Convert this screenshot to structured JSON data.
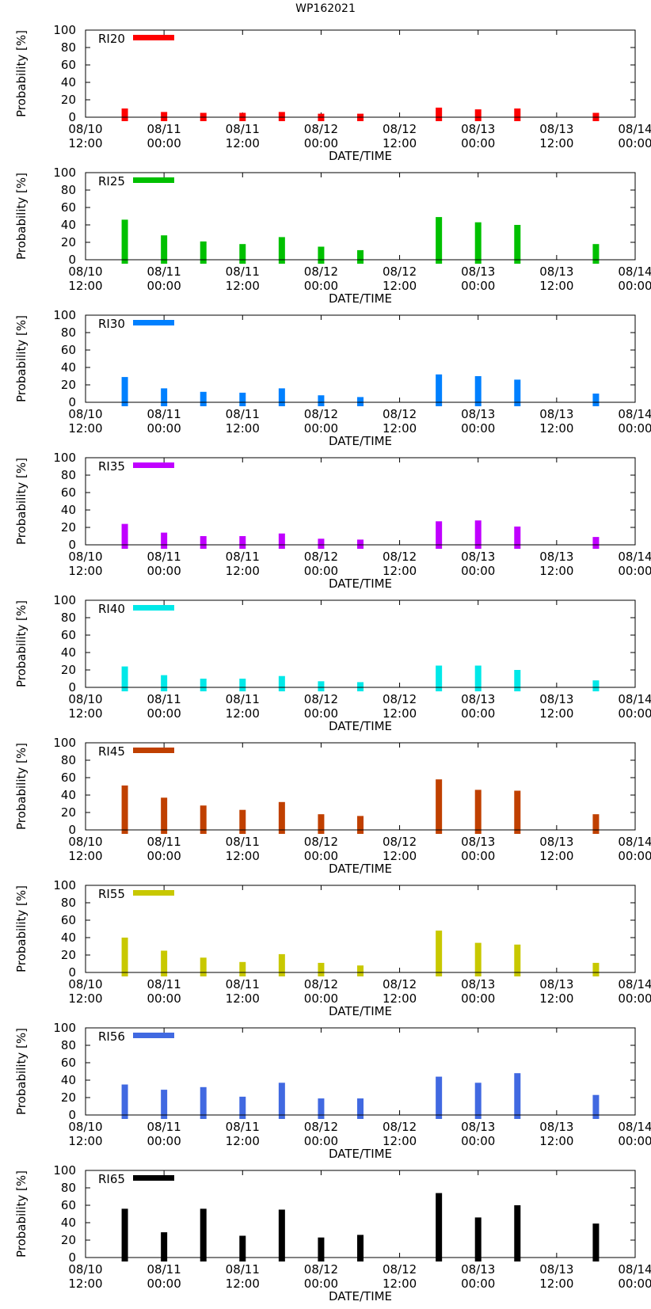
{
  "title": "WP162021",
  "chart_data": [
    {
      "type": "bar",
      "legend": "RI20",
      "color": "#ff0000",
      "xlabel": "DATE/TIME",
      "ylabel": "Probability [%]",
      "ylim": [
        0,
        100
      ],
      "yticks": [
        0,
        20,
        40,
        60,
        80,
        100
      ],
      "x_ticks": [
        {
          "line1": "08/10",
          "line2": "12:00"
        },
        {
          "line1": "08/11",
          "line2": "00:00"
        },
        {
          "line1": "08/11",
          "line2": "12:00"
        },
        {
          "line1": "08/12",
          "line2": "00:00"
        },
        {
          "line1": "08/12",
          "line2": "12:00"
        },
        {
          "line1": "08/13",
          "line2": "00:00"
        },
        {
          "line1": "08/13",
          "line2": "12:00"
        },
        {
          "line1": "08/14",
          "line2": "00:00"
        }
      ],
      "x_hours": [
        6,
        12,
        18,
        24,
        30,
        36,
        42,
        54,
        60,
        66,
        78
      ],
      "values": [
        10,
        6,
        5,
        5,
        6,
        4,
        4,
        11,
        9,
        10,
        5
      ]
    },
    {
      "type": "bar",
      "legend": "RI25",
      "color": "#00c000",
      "xlabel": "DATE/TIME",
      "ylabel": "Probability [%]",
      "ylim": [
        0,
        100
      ],
      "yticks": [
        0,
        20,
        40,
        60,
        80,
        100
      ],
      "x_ticks": [
        {
          "line1": "08/10",
          "line2": "12:00"
        },
        {
          "line1": "08/11",
          "line2": "00:00"
        },
        {
          "line1": "08/11",
          "line2": "12:00"
        },
        {
          "line1": "08/12",
          "line2": "00:00"
        },
        {
          "line1": "08/12",
          "line2": "12:00"
        },
        {
          "line1": "08/13",
          "line2": "00:00"
        },
        {
          "line1": "08/13",
          "line2": "12:00"
        },
        {
          "line1": "08/14",
          "line2": "00:00"
        }
      ],
      "x_hours": [
        6,
        12,
        18,
        24,
        30,
        36,
        42,
        54,
        60,
        66,
        78
      ],
      "values": [
        46,
        28,
        21,
        18,
        26,
        15,
        11,
        49,
        43,
        40,
        18
      ]
    },
    {
      "type": "bar",
      "legend": "RI30",
      "color": "#0080ff",
      "xlabel": "DATE/TIME",
      "ylabel": "Probability [%]",
      "ylim": [
        0,
        100
      ],
      "yticks": [
        0,
        20,
        40,
        60,
        80,
        100
      ],
      "x_ticks": [
        {
          "line1": "08/10",
          "line2": "12:00"
        },
        {
          "line1": "08/11",
          "line2": "00:00"
        },
        {
          "line1": "08/11",
          "line2": "12:00"
        },
        {
          "line1": "08/12",
          "line2": "00:00"
        },
        {
          "line1": "08/12",
          "line2": "12:00"
        },
        {
          "line1": "08/13",
          "line2": "00:00"
        },
        {
          "line1": "08/13",
          "line2": "12:00"
        },
        {
          "line1": "08/14",
          "line2": "00:00"
        }
      ],
      "x_hours": [
        6,
        12,
        18,
        24,
        30,
        36,
        42,
        54,
        60,
        66,
        78
      ],
      "values": [
        29,
        16,
        12,
        11,
        16,
        8,
        6,
        32,
        30,
        26,
        10
      ]
    },
    {
      "type": "bar",
      "legend": "RI35",
      "color": "#c000ff",
      "xlabel": "DATE/TIME",
      "ylabel": "Probability [%]",
      "ylim": [
        0,
        100
      ],
      "yticks": [
        0,
        20,
        40,
        60,
        80,
        100
      ],
      "x_ticks": [
        {
          "line1": "08/10",
          "line2": "12:00"
        },
        {
          "line1": "08/11",
          "line2": "00:00"
        },
        {
          "line1": "08/11",
          "line2": "12:00"
        },
        {
          "line1": "08/12",
          "line2": "00:00"
        },
        {
          "line1": "08/12",
          "line2": "12:00"
        },
        {
          "line1": "08/13",
          "line2": "00:00"
        },
        {
          "line1": "08/13",
          "line2": "12:00"
        },
        {
          "line1": "08/14",
          "line2": "00:00"
        }
      ],
      "x_hours": [
        6,
        12,
        18,
        24,
        30,
        36,
        42,
        54,
        60,
        66,
        78
      ],
      "values": [
        24,
        14,
        10,
        10,
        13,
        7,
        6,
        27,
        28,
        21,
        9
      ]
    },
    {
      "type": "bar",
      "legend": "RI40",
      "color": "#00e8e8",
      "xlabel": "DATE/TIME",
      "ylabel": "Probability [%]",
      "ylim": [
        0,
        100
      ],
      "yticks": [
        0,
        20,
        40,
        60,
        80,
        100
      ],
      "x_ticks": [
        {
          "line1": "08/10",
          "line2": "12:00"
        },
        {
          "line1": "08/11",
          "line2": "00:00"
        },
        {
          "line1": "08/11",
          "line2": "12:00"
        },
        {
          "line1": "08/12",
          "line2": "00:00"
        },
        {
          "line1": "08/12",
          "line2": "12:00"
        },
        {
          "line1": "08/13",
          "line2": "00:00"
        },
        {
          "line1": "08/13",
          "line2": "12:00"
        },
        {
          "line1": "08/14",
          "line2": "00:00"
        }
      ],
      "x_hours": [
        6,
        12,
        18,
        24,
        30,
        36,
        42,
        54,
        60,
        66,
        78
      ],
      "values": [
        24,
        14,
        10,
        10,
        13,
        7,
        6,
        25,
        25,
        20,
        8
      ]
    },
    {
      "type": "bar",
      "legend": "RI45",
      "color": "#c04000",
      "xlabel": "DATE/TIME",
      "ylabel": "Probability [%]",
      "ylim": [
        0,
        100
      ],
      "yticks": [
        0,
        20,
        40,
        60,
        80,
        100
      ],
      "x_ticks": [
        {
          "line1": "08/10",
          "line2": "12:00"
        },
        {
          "line1": "08/11",
          "line2": "00:00"
        },
        {
          "line1": "08/11",
          "line2": "12:00"
        },
        {
          "line1": "08/12",
          "line2": "00:00"
        },
        {
          "line1": "08/12",
          "line2": "12:00"
        },
        {
          "line1": "08/13",
          "line2": "00:00"
        },
        {
          "line1": "08/13",
          "line2": "12:00"
        },
        {
          "line1": "08/14",
          "line2": "00:00"
        }
      ],
      "x_hours": [
        6,
        12,
        18,
        24,
        30,
        36,
        42,
        54,
        60,
        66,
        78
      ],
      "values": [
        51,
        37,
        28,
        23,
        32,
        18,
        16,
        58,
        46,
        45,
        18
      ]
    },
    {
      "type": "bar",
      "legend": "RI55",
      "color": "#c8c800",
      "xlabel": "DATE/TIME",
      "ylabel": "Probability [%]",
      "ylim": [
        0,
        100
      ],
      "yticks": [
        0,
        20,
        40,
        60,
        80,
        100
      ],
      "x_ticks": [
        {
          "line1": "08/10",
          "line2": "12:00"
        },
        {
          "line1": "08/11",
          "line2": "00:00"
        },
        {
          "line1": "08/11",
          "line2": "12:00"
        },
        {
          "line1": "08/12",
          "line2": "00:00"
        },
        {
          "line1": "08/12",
          "line2": "12:00"
        },
        {
          "line1": "08/13",
          "line2": "00:00"
        },
        {
          "line1": "08/13",
          "line2": "12:00"
        },
        {
          "line1": "08/14",
          "line2": "00:00"
        }
      ],
      "x_hours": [
        6,
        12,
        18,
        24,
        30,
        36,
        42,
        54,
        60,
        66,
        78
      ],
      "values": [
        40,
        25,
        17,
        12,
        21,
        11,
        8,
        48,
        34,
        32,
        11
      ]
    },
    {
      "type": "bar",
      "legend": "RI56",
      "color": "#4169e1",
      "xlabel": "DATE/TIME",
      "ylabel": "Probability [%]",
      "ylim": [
        0,
        100
      ],
      "yticks": [
        0,
        20,
        40,
        60,
        80,
        100
      ],
      "x_ticks": [
        {
          "line1": "08/10",
          "line2": "12:00"
        },
        {
          "line1": "08/11",
          "line2": "00:00"
        },
        {
          "line1": "08/11",
          "line2": "12:00"
        },
        {
          "line1": "08/12",
          "line2": "00:00"
        },
        {
          "line1": "08/12",
          "line2": "12:00"
        },
        {
          "line1": "08/13",
          "line2": "00:00"
        },
        {
          "line1": "08/13",
          "line2": "12:00"
        },
        {
          "line1": "08/14",
          "line2": "00:00"
        }
      ],
      "x_hours": [
        6,
        12,
        18,
        24,
        30,
        36,
        42,
        54,
        60,
        66,
        78
      ],
      "values": [
        35,
        29,
        32,
        21,
        37,
        19,
        19,
        44,
        37,
        48,
        23
      ]
    },
    {
      "type": "bar",
      "legend": "RI65",
      "color": "#000000",
      "xlabel": "DATE/TIME",
      "ylabel": "Probability [%]",
      "ylim": [
        0,
        100
      ],
      "yticks": [
        0,
        20,
        40,
        60,
        80,
        100
      ],
      "x_ticks": [
        {
          "line1": "08/10",
          "line2": "12:00"
        },
        {
          "line1": "08/11",
          "line2": "00:00"
        },
        {
          "line1": "08/11",
          "line2": "12:00"
        },
        {
          "line1": "08/12",
          "line2": "00:00"
        },
        {
          "line1": "08/12",
          "line2": "12:00"
        },
        {
          "line1": "08/13",
          "line2": "00:00"
        },
        {
          "line1": "08/13",
          "line2": "12:00"
        },
        {
          "line1": "08/14",
          "line2": "00:00"
        }
      ],
      "x_hours": [
        6,
        12,
        18,
        24,
        30,
        36,
        42,
        54,
        60,
        66,
        78
      ],
      "values": [
        56,
        29,
        56,
        25,
        55,
        23,
        26,
        74,
        46,
        60,
        39
      ]
    }
  ]
}
